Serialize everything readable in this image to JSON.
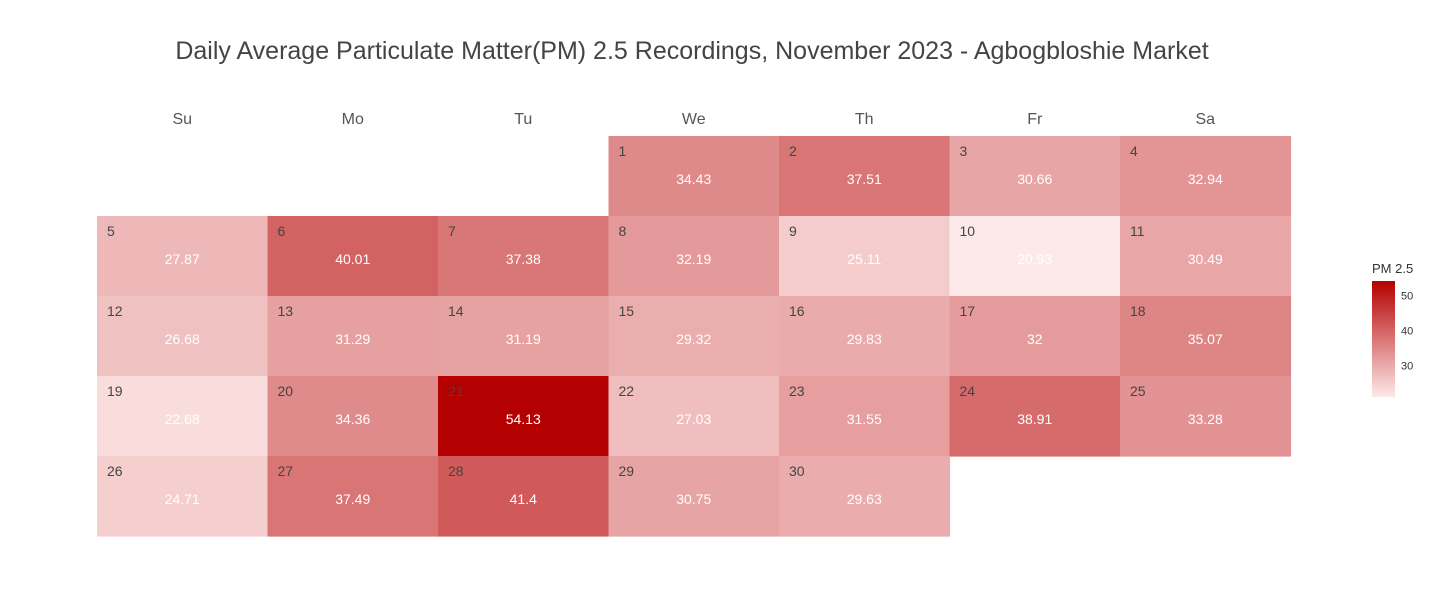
{
  "chart_data": {
    "type": "heatmap",
    "title": "Daily Average Particulate Matter(PM) 2.5 Recordings, November 2023 - Agbogbloshie Market",
    "weekdays": [
      "Su",
      "Mo",
      "Tu",
      "We",
      "Th",
      "Fr",
      "Sa"
    ],
    "first_weekday_index": 3,
    "days": [
      {
        "day": "1",
        "value": 34.43
      },
      {
        "day": "2",
        "value": 37.51
      },
      {
        "day": "3",
        "value": 30.66
      },
      {
        "day": "4",
        "value": 32.94
      },
      {
        "day": "5",
        "value": 27.87
      },
      {
        "day": "6",
        "value": 40.01
      },
      {
        "day": "7",
        "value": 37.38
      },
      {
        "day": "8",
        "value": 32.19
      },
      {
        "day": "9",
        "value": 25.11
      },
      {
        "day": "10",
        "value": 20.93
      },
      {
        "day": "11",
        "value": 30.49
      },
      {
        "day": "12",
        "value": 26.68
      },
      {
        "day": "13",
        "value": 31.29
      },
      {
        "day": "14",
        "value": 31.19
      },
      {
        "day": "15",
        "value": 29.32
      },
      {
        "day": "16",
        "value": 29.83
      },
      {
        "day": "17",
        "value": 32
      },
      {
        "day": "18",
        "value": 35.07
      },
      {
        "day": "19",
        "value": 22.68
      },
      {
        "day": "20",
        "value": 34.36
      },
      {
        "day": "21",
        "value": 54.13
      },
      {
        "day": "22",
        "value": 27.03
      },
      {
        "day": "23",
        "value": 31.55
      },
      {
        "day": "24",
        "value": 38.91
      },
      {
        "day": "25",
        "value": 33.28
      },
      {
        "day": "26",
        "value": 24.71
      },
      {
        "day": "27",
        "value": 37.49
      },
      {
        "day": "28",
        "value": 41.4
      },
      {
        "day": "29",
        "value": 30.75
      },
      {
        "day": "30",
        "value": 29.63
      }
    ],
    "color_scale": {
      "min": 20.93,
      "max": 54.13,
      "low_color": "#fde9e9",
      "high_color": "#b40000"
    },
    "legend": {
      "title": "PM 2.5",
      "ticks": [
        "30",
        "40",
        "50"
      ],
      "placement": "right"
    }
  }
}
